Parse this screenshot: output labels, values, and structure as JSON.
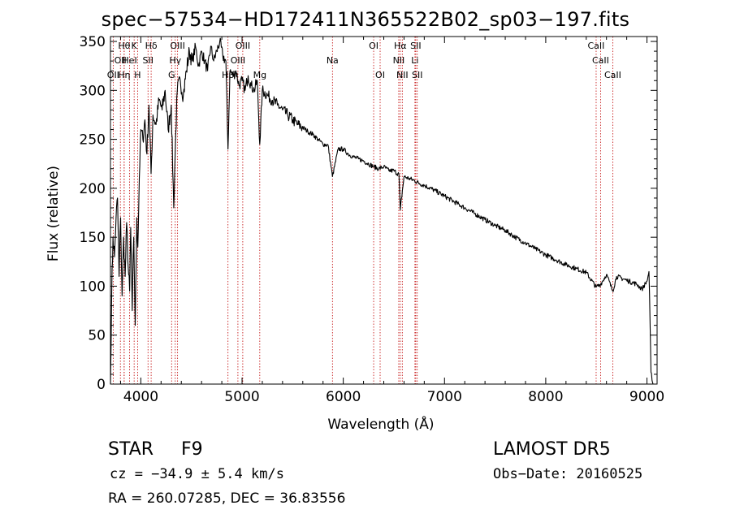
{
  "title": "spec−57534−HD172411N365522B02_sp03−197.fits",
  "info": {
    "object_class": "STAR",
    "subclass": "F9",
    "survey": "LAMOST DR5",
    "redshift": "cz = −34.9 ± 5.4 km/s",
    "obs_date": "Obs−Date: 20160525",
    "coords": "RA = 260.07285, DEC =  36.83556"
  },
  "chart_data": {
    "type": "line",
    "xlabel": "Wavelength (Å)",
    "ylabel": "Flux (relative)",
    "xlim": [
      3700,
      9100
    ],
    "ylim": [
      0,
      355
    ],
    "xticks": [
      4000,
      5000,
      6000,
      7000,
      8000,
      9000
    ],
    "yticks": [
      0,
      50,
      100,
      150,
      200,
      250,
      300,
      350
    ],
    "line_color": "#000000",
    "marker_color": "#c00000",
    "series": [
      {
        "x": [
          3700,
          3712,
          3725,
          3740,
          3755,
          3770,
          3785,
          3800,
          3815,
          3830,
          3845,
          3860,
          3875,
          3889,
          3900,
          3915,
          3930,
          3945,
          3960,
          3970,
          3985,
          4000,
          4020,
          4040,
          4060,
          4080,
          4101,
          4120,
          4150,
          4180,
          4210,
          4240,
          4270,
          4300,
          4325,
          4340,
          4360,
          4390,
          4420,
          4450,
          4480,
          4510,
          4540,
          4570,
          4600,
          4630,
          4660,
          4690,
          4720,
          4750,
          4780,
          4810,
          4840,
          4861,
          4880,
          4910,
          4940,
          4970,
          5000,
          5030,
          5060,
          5090,
          5120,
          5150,
          5175,
          5200,
          5250,
          5300,
          5350,
          5400,
          5450,
          5500,
          5550,
          5600,
          5650,
          5700,
          5750,
          5800,
          5850,
          5893,
          5950,
          6000,
          6050,
          6100,
          6150,
          6200,
          6250,
          6300,
          6350,
          6400,
          6450,
          6500,
          6550,
          6563,
          6600,
          6650,
          6700,
          6750,
          6800,
          6900,
          7000,
          7100,
          7200,
          7300,
          7400,
          7500,
          7600,
          7700,
          7800,
          7900,
          8000,
          8100,
          8200,
          8300,
          8400,
          8498,
          8542,
          8600,
          8662,
          8700,
          8800,
          8900,
          8950,
          9000,
          9020,
          9040,
          9060
        ],
        "y": [
          0,
          90,
          150,
          130,
          170,
          190,
          110,
          170,
          90,
          150,
          110,
          165,
          120,
          95,
          160,
          75,
          150,
          60,
          170,
          140,
          210,
          260,
          250,
          270,
          235,
          285,
          215,
          275,
          265,
          290,
          280,
          300,
          260,
          285,
          180,
          240,
          300,
          310,
          295,
          320,
          340,
          330,
          345,
          325,
          340,
          330,
          320,
          345,
          330,
          340,
          350,
          335,
          330,
          240,
          320,
          315,
          320,
          305,
          310,
          300,
          315,
          305,
          300,
          310,
          245,
          300,
          295,
          290,
          285,
          280,
          275,
          270,
          265,
          262,
          258,
          255,
          250,
          245,
          244,
          212,
          240,
          240,
          235,
          232,
          230,
          228,
          225,
          222,
          220,
          222,
          218,
          218,
          214,
          178,
          212,
          210,
          208,
          205,
          203,
          198,
          192,
          186,
          180,
          174,
          168,
          162,
          157,
          150,
          144,
          138,
          132,
          127,
          122,
          118,
          114,
          99,
          102,
          112,
          95,
          110,
          106,
          102,
          97,
          105,
          115,
          12,
          0
        ]
      }
    ],
    "line_markers": [
      {
        "wl": 3727,
        "label": "OII",
        "row": 2
      },
      {
        "wl": 3798,
        "label": "OII",
        "row": 1
      },
      {
        "wl": 3835,
        "label": "Hθ",
        "row": 0
      },
      {
        "wl": 3835,
        "label": "Hη",
        "row": 2
      },
      {
        "wl": 3889,
        "label": "HeI",
        "row": 1
      },
      {
        "wl": 3934,
        "label": "K",
        "row": 0
      },
      {
        "wl": 3968,
        "label": "H",
        "row": 2
      },
      {
        "wl": 4071,
        "label": "SII",
        "row": 1
      },
      {
        "wl": 4102,
        "label": "Hδ",
        "row": 0
      },
      {
        "wl": 4304,
        "label": "G",
        "row": 2
      },
      {
        "wl": 4340,
        "label": "Hγ",
        "row": 1
      },
      {
        "wl": 4363,
        "label": "OIII",
        "row": 0
      },
      {
        "wl": 4861,
        "label": "Hβ",
        "row": 2
      },
      {
        "wl": 4959,
        "label": "OIII",
        "row": 1
      },
      {
        "wl": 5007,
        "label": "OIII",
        "row": 0
      },
      {
        "wl": 5175,
        "label": "Mg",
        "row": 2
      },
      {
        "wl": 5893,
        "label": "Na",
        "row": 1
      },
      {
        "wl": 6300,
        "label": "OI",
        "row": 0
      },
      {
        "wl": 6364,
        "label": "OI",
        "row": 2
      },
      {
        "wl": 6548,
        "label": "NII",
        "row": 1
      },
      {
        "wl": 6563,
        "label": "Hα",
        "row": 0
      },
      {
        "wl": 6583,
        "label": "NII",
        "row": 2
      },
      {
        "wl": 6708,
        "label": "Li",
        "row": 1
      },
      {
        "wl": 6716,
        "label": "SII",
        "row": 0
      },
      {
        "wl": 6731,
        "label": "SII",
        "row": 2
      },
      {
        "wl": 8498,
        "label": "CaII",
        "row": 0
      },
      {
        "wl": 8542,
        "label": "CaII",
        "row": 1
      },
      {
        "wl": 8662,
        "label": "CaII",
        "row": 2
      }
    ]
  }
}
